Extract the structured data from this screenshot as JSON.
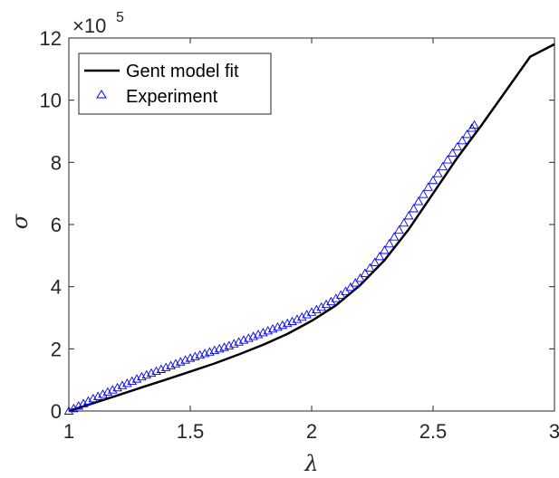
{
  "chart_data": {
    "type": "line",
    "xlabel": "λ",
    "ylabel": "σ",
    "xlim": [
      1,
      3
    ],
    "ylim": [
      0,
      1200000
    ],
    "xticks": [
      1,
      1.5,
      2,
      2.5,
      3
    ],
    "xtick_labels": [
      "1",
      "1.5",
      "2",
      "2.5",
      "3"
    ],
    "yticks": [
      0,
      200000,
      400000,
      600000,
      800000,
      1000000,
      1200000
    ],
    "ytick_labels": [
      "0",
      "2",
      "4",
      "6",
      "8",
      "10",
      "12"
    ],
    "y_exponent": {
      "base": "×10",
      "power": "5"
    },
    "grid": false,
    "legend_position": "top-left",
    "series": [
      {
        "name": "Gent model fit",
        "style": "line",
        "color": "#000000",
        "x": [
          1.0,
          1.1,
          1.2,
          1.3,
          1.4,
          1.5,
          1.6,
          1.7,
          1.8,
          1.9,
          2.0,
          2.1,
          2.2,
          2.3,
          2.4,
          2.5,
          2.6,
          2.7,
          2.8,
          2.9,
          3.0
        ],
        "y": [
          0,
          25000,
          50000,
          76000,
          101000,
          127000,
          153000,
          182000,
          213000,
          248000,
          290000,
          340000,
          405000,
          485000,
          585000,
          700000,
          815000,
          920000,
          1030000,
          1140000,
          1180000
        ]
      },
      {
        "name": "Experiment",
        "style": "marker",
        "marker": "triangle",
        "color": "#0000ff",
        "x": [
          1.0,
          1.02,
          1.04,
          1.06,
          1.08,
          1.1,
          1.12,
          1.14,
          1.16,
          1.18,
          1.2,
          1.22,
          1.24,
          1.26,
          1.28,
          1.3,
          1.32,
          1.34,
          1.36,
          1.38,
          1.4,
          1.42,
          1.44,
          1.46,
          1.48,
          1.5,
          1.52,
          1.54,
          1.56,
          1.58,
          1.6,
          1.62,
          1.64,
          1.66,
          1.68,
          1.7,
          1.72,
          1.74,
          1.76,
          1.78,
          1.8,
          1.82,
          1.84,
          1.86,
          1.88,
          1.9,
          1.92,
          1.94,
          1.96,
          1.98,
          2.0,
          2.02,
          2.04,
          2.06,
          2.08,
          2.1,
          2.12,
          2.14,
          2.16,
          2.18,
          2.2,
          2.22,
          2.24,
          2.26,
          2.28,
          2.3,
          2.32,
          2.34,
          2.36,
          2.38,
          2.4,
          2.42,
          2.44,
          2.46,
          2.48,
          2.5,
          2.52,
          2.54,
          2.56,
          2.58,
          2.6,
          2.62,
          2.64,
          2.66,
          2.67
        ],
        "y": [
          0,
          8000,
          16000,
          24000,
          32000,
          40000,
          47000,
          54000,
          61000,
          68000,
          75000,
          82000,
          89000,
          96000,
          103000,
          110000,
          116000,
          122000,
          128000,
          134000,
          140000,
          146000,
          152000,
          158000,
          164000,
          170000,
          175000,
          180000,
          185000,
          190000,
          195000,
          200000,
          205000,
          210000,
          216000,
          222000,
          228000,
          234000,
          240000,
          246000,
          252000,
          258000,
          264000,
          270000,
          276000,
          282000,
          288000,
          295000,
          302000,
          310000,
          318000,
          326000,
          334000,
          343000,
          352000,
          362000,
          373000,
          385000,
          398000,
          412000,
          427000,
          443000,
          460000,
          478000,
          497000,
          517000,
          538000,
          560000,
          582000,
          605000,
          628000,
          651000,
          674000,
          697000,
          720000,
          742000,
          764000,
          786000,
          808000,
          830000,
          850000,
          870000,
          890000,
          910000,
          920000
        ]
      }
    ]
  }
}
